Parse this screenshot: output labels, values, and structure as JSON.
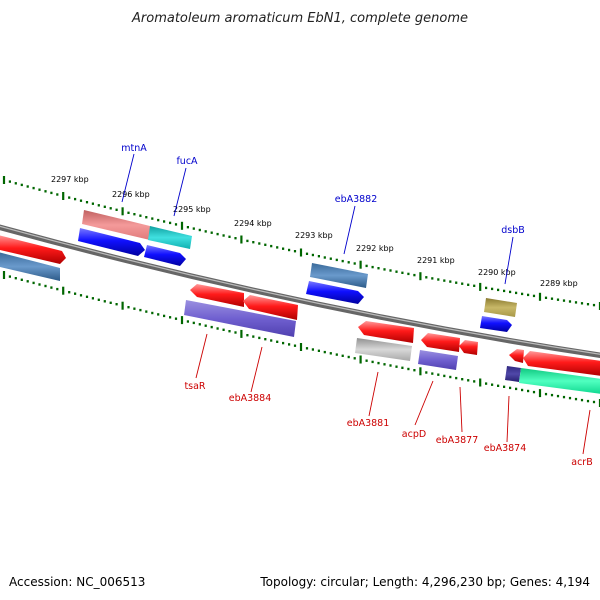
{
  "title": "Aromatoleum aromaticum EbN1, complete genome",
  "accession": "Accession: NC_006513",
  "topology": "Topology: circular; Length: 4,296,230 bp; Genes: 4,194",
  "kbp_labels": [
    "2297 kbp",
    "2296 kbp",
    "2295 kbp",
    "2294 kbp",
    "2293 kbp",
    "2292 kbp",
    "2291 kbp",
    "2290 kbp",
    "2289 kbp"
  ],
  "colors": {
    "forward_label": "#0000cc",
    "reverse_label": "#cc0000",
    "tick": "#006600",
    "backbone": "#888888"
  },
  "forward_genes": [
    "mtnA",
    "fucA",
    "ebA3882",
    "dsbB"
  ],
  "reverse_genes": [
    "tsaR",
    "ebA3884",
    "ebA3881",
    "acpD",
    "ebA3877",
    "ebA3874",
    "acrB"
  ]
}
